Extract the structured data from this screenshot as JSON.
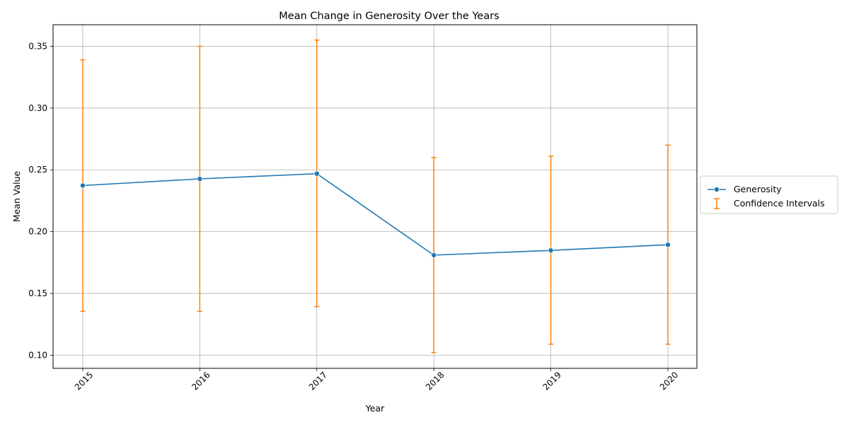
{
  "chart_data": {
    "type": "line",
    "title": "Mean Change in Generosity Over the Years",
    "xlabel": "Year",
    "ylabel": "Mean Value",
    "x": [
      "2015",
      "2016",
      "2017",
      "2018",
      "2019",
      "2020"
    ],
    "series": [
      {
        "name": "Generosity",
        "values": [
          0.2373,
          0.2427,
          0.2469,
          0.181,
          0.1848,
          0.1894
        ],
        "color": "#1f77b4",
        "marker": "circle"
      }
    ],
    "error_bars": {
      "name": "Confidence Intervals",
      "color": "#ff7f0e",
      "lower": [
        0.1355,
        0.1355,
        0.1393,
        0.1022,
        0.1089,
        0.1089
      ],
      "upper": [
        0.339,
        0.35,
        0.355,
        0.26,
        0.261,
        0.27
      ]
    },
    "ylim": [
      0.0894,
      0.3674
    ],
    "yticks": [
      0.1,
      0.15,
      0.2,
      0.25,
      0.3,
      0.35
    ],
    "ytick_labels": [
      "0.10",
      "0.15",
      "0.20",
      "0.25",
      "0.30",
      "0.35"
    ],
    "grid": true,
    "legend_position": "outside-right",
    "xtick_rotation": 45
  }
}
